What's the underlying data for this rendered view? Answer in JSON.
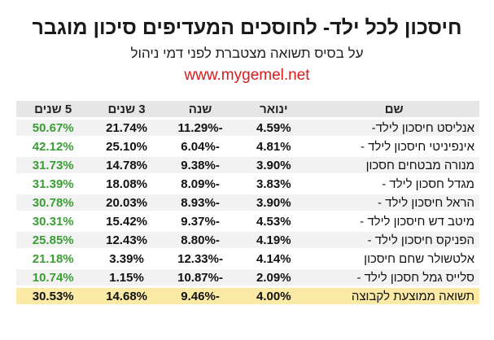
{
  "header": {
    "title": "חיסכון לכל ילד- לחוסכים המעדיפים סיכון מוגבר",
    "subtitle": "על בסיס תשואה מצטברת לפני דמי ניהול",
    "site": "www.mygemel.net"
  },
  "table": {
    "columns": [
      "שם",
      "ינואר",
      "שנה",
      "3 שנים",
      "5 שנים"
    ],
    "rows": [
      {
        "name": "אנליסט חיסכון לילד-",
        "jan": "4.59%",
        "year": "-11.29%",
        "y3": "21.74%",
        "y5": "50.67%"
      },
      {
        "name": "אינפיניטי חיסכון לילד -",
        "jan": "4.81%",
        "year": "-6.04%",
        "y3": "25.10%",
        "y5": "42.12%"
      },
      {
        "name": "מנורה מבטחים חסכון",
        "jan": "3.90%",
        "year": "-9.38%",
        "y3": "14.78%",
        "y5": "31.73%"
      },
      {
        "name": "מגדל חסכון לילד -",
        "jan": "3.83%",
        "year": "-8.09%",
        "y3": "18.08%",
        "y5": "31.39%"
      },
      {
        "name": "הראל חיסכון לילד -",
        "jan": "3.90%",
        "year": "-8.93%",
        "y3": "20.03%",
        "y5": "30.78%"
      },
      {
        "name": "מיטב דש חיסכון לילד -",
        "jan": "4.53%",
        "year": "-9.37%",
        "y3": "15.42%",
        "y5": "30.31%"
      },
      {
        "name": "הפניקס חיסכון לילד -",
        "jan": "4.19%",
        "year": "-8.80%",
        "y3": "12.43%",
        "y5": "25.85%"
      },
      {
        "name": "אלטשולר שחם חיסכון",
        "jan": "4.14%",
        "year": "-12.33%",
        "y3": "3.39%",
        "y5": "21.18%"
      },
      {
        "name": "סלייס גמל חסכון לילד -",
        "jan": "2.09%",
        "year": "-10.87%",
        "y3": "1.15%",
        "y5": "10.74%"
      }
    ],
    "average": {
      "name": "תשואה ממוצעת לקבוצה",
      "jan": "4.00%",
      "year": "-9.46%",
      "y3": "14.68%",
      "y5": "30.53%"
    }
  },
  "colors": {
    "positive_5y": "#3a9e34",
    "site_link": "#d81b1b",
    "average_row": "#fbeaa6"
  }
}
